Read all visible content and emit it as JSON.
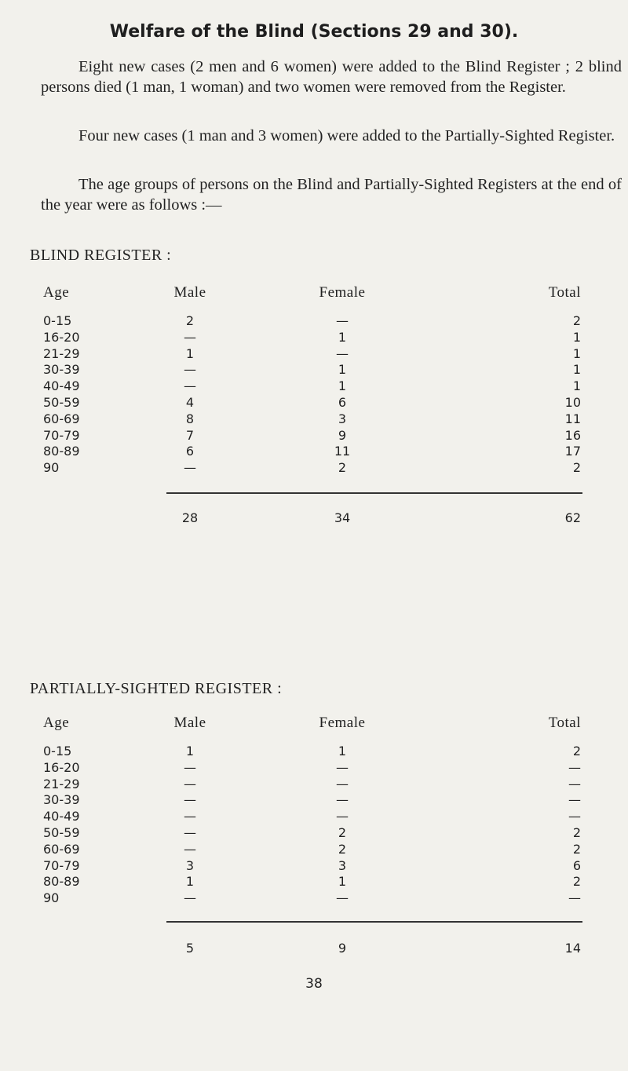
{
  "title": "Welfare of the Blind (Sections 29 and 30).",
  "paragraphs": [
    "Eight new cases (2 men and 6 women) were added to the Blind Register ; 2 blind persons died (1 man, 1 woman) and two women were removed from the Register.",
    "Four new cases (1 man and 3 women) were added to the Partially-Sighted Register.",
    "The age groups of persons on the Blind and Partially-Sighted Registers at the end of the year were as follows :—"
  ],
  "blind_register": {
    "heading": "BLIND REGISTER :",
    "columns": [
      "Age",
      "Male",
      "Female",
      "Total"
    ],
    "rows": [
      [
        "0-15",
        "2",
        "—",
        "2"
      ],
      [
        "16-20",
        "—",
        "1",
        "1"
      ],
      [
        "21-29",
        "1",
        "—",
        "1"
      ],
      [
        "30-39",
        "—",
        "1",
        "1"
      ],
      [
        "40-49",
        "—",
        "1",
        "1"
      ],
      [
        "50-59",
        "4",
        "6",
        "10"
      ],
      [
        "60-69",
        "8",
        "3",
        "11"
      ],
      [
        "70-79",
        "7",
        "9",
        "16"
      ],
      [
        "80-89",
        "6",
        "11",
        "17"
      ],
      [
        "90",
        "—",
        "2",
        "2"
      ]
    ],
    "totals": [
      "28",
      "34",
      "62"
    ]
  },
  "partially_sighted_register": {
    "heading": "PARTIALLY-SIGHTED REGISTER :",
    "columns": [
      "Age",
      "Male",
      "Female",
      "Total"
    ],
    "rows": [
      [
        "0-15",
        "1",
        "1",
        "2"
      ],
      [
        "16-20",
        "—",
        "—",
        "—"
      ],
      [
        "21-29",
        "—",
        "—",
        "—"
      ],
      [
        "30-39",
        "—",
        "—",
        "—"
      ],
      [
        "40-49",
        "—",
        "—",
        "—"
      ],
      [
        "50-59",
        "—",
        "2",
        "2"
      ],
      [
        "60-69",
        "—",
        "2",
        "2"
      ],
      [
        "70-79",
        "3",
        "3",
        "6"
      ],
      [
        "80-89",
        "1",
        "1",
        "2"
      ],
      [
        "90",
        "—",
        "—",
        "—"
      ]
    ],
    "totals": [
      "5",
      "9",
      "14"
    ]
  },
  "page_number": "38"
}
